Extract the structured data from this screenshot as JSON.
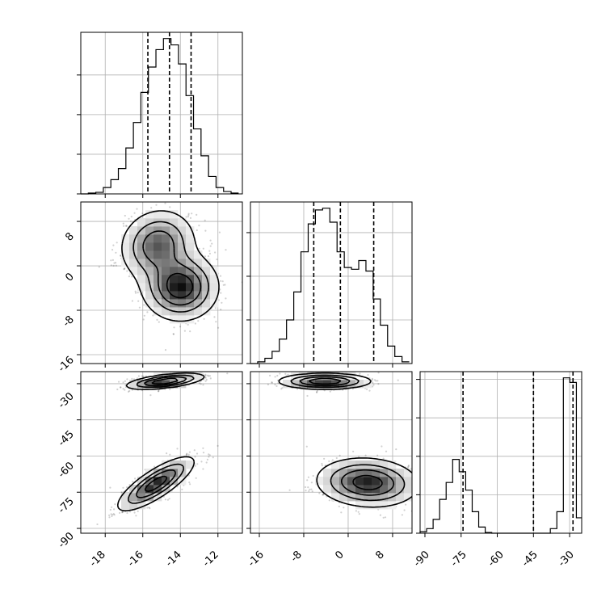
{
  "chart_data": [
    {
      "type": "step-histogram",
      "panel": "marginal-1",
      "xlim": [
        -19.3,
        -10.7
      ],
      "bins": [
        -19.3,
        -18.9,
        -18.5,
        -18.1,
        -17.7,
        -17.3,
        -16.9,
        -16.5,
        -16.1,
        -15.7,
        -15.3,
        -14.9,
        -14.5,
        -14.1,
        -13.7,
        -13.3,
        -12.9,
        -12.5,
        -12.1,
        -11.7,
        -11.3,
        -10.9
      ],
      "counts": [
        0,
        1,
        2,
        8,
        18,
        32,
        58,
        90,
        128,
        160,
        182,
        196,
        188,
        164,
        124,
        82,
        48,
        22,
        8,
        3,
        1
      ],
      "quantiles": [
        -15.73,
        -14.58,
        -13.43
      ],
      "yticks": [
        0,
        50,
        100,
        150
      ]
    },
    {
      "type": "step-histogram",
      "panel": "marginal-2",
      "xlim": [
        -17.6,
        11.5
      ],
      "bins": [
        -17.6,
        -16.3,
        -15.0,
        -13.7,
        -12.4,
        -11.1,
        -9.8,
        -8.5,
        -7.2,
        -5.9,
        -4.6,
        -3.3,
        -2.0,
        -0.7,
        0.6,
        1.9,
        3.2,
        4.5,
        5.8,
        7.1,
        8.4,
        9.7,
        11.0
      ],
      "counts": [
        0,
        2,
        6,
        14,
        28,
        50,
        82,
        128,
        160,
        176,
        178,
        162,
        128,
        110,
        108,
        118,
        106,
        74,
        44,
        20,
        8,
        2
      ],
      "quantiles": [
        -6.2,
        -1.4,
        4.6
      ],
      "yticks": [
        0,
        50,
        100,
        150
      ]
    },
    {
      "type": "step-histogram",
      "panel": "marginal-3",
      "xlim": [
        -92,
        -25
      ],
      "bins": [
        -92,
        -89.3,
        -86.6,
        -83.9,
        -81.2,
        -78.5,
        -75.8,
        -73.1,
        -70.4,
        -67.7,
        -65,
        -62.3,
        -59.6,
        -56.9,
        -54.2,
        -51.5,
        -48.8,
        -46.1,
        -43.4,
        -40.7,
        -38,
        -35.3,
        -32.6,
        -29.9,
        -27.2,
        -25
      ],
      "counts": [
        2,
        6,
        18,
        44,
        66,
        96,
        80,
        56,
        28,
        8,
        1,
        0,
        0,
        0,
        0,
        0,
        0,
        0,
        0,
        0,
        6,
        28,
        202,
        196,
        20
      ],
      "quantiles": [
        -74.2,
        -45.0,
        -28.6
      ],
      "yticks": [
        0,
        50,
        100,
        150,
        200
      ]
    },
    {
      "type": "heatmap",
      "panel": "joint-1-2",
      "xlim": [
        -19.3,
        -10.7
      ],
      "ylim": [
        -17.6,
        11.5
      ],
      "mixture": [
        {
          "mx": -14.0,
          "my": -3.8,
          "sx": 1.0,
          "sy": 3.0,
          "rho": 0.0,
          "w": 0.6
        },
        {
          "mx": -15.2,
          "my": 3.8,
          "sx": 1.0,
          "sy": 3.2,
          "rho": 0.1,
          "w": 0.45
        }
      ],
      "contour_levels": [
        0.12,
        0.32,
        0.55,
        0.8
      ]
    },
    {
      "type": "heatmap",
      "panel": "joint-1-3",
      "xlim": [
        -19.3,
        -10.7
      ],
      "ylim": [
        -92,
        -25
      ],
      "mixture": [
        {
          "mx": -14.8,
          "my": -29.0,
          "sx": 1.0,
          "sy": 1.6,
          "rho": 0.55,
          "w": 0.55
        },
        {
          "mx": -15.3,
          "my": -71.5,
          "sx": 1.0,
          "sy": 5.5,
          "rho": 0.8,
          "w": 0.5
        }
      ],
      "contour_levels": [
        0.12,
        0.32,
        0.55,
        0.8
      ]
    },
    {
      "type": "heatmap",
      "panel": "joint-2-3",
      "xlim": [
        -17.6,
        11.5
      ],
      "ylim": [
        -92,
        -25
      ],
      "mixture": [
        {
          "mx": -4.2,
          "my": -29.0,
          "sx": 4.0,
          "sy": 1.6,
          "rho": 0.0,
          "w": 0.55
        },
        {
          "mx": 3.5,
          "my": -71.0,
          "sx": 4.5,
          "sy": 5.0,
          "rho": -0.1,
          "w": 0.5
        }
      ],
      "contour_levels": [
        0.12,
        0.32,
        0.55,
        0.8
      ]
    }
  ],
  "axis_ticks": {
    "param1": [
      "-18",
      "-16",
      "-14",
      "-12"
    ],
    "param1_values": [
      -18,
      -16,
      -14,
      -12
    ],
    "param2": [
      "-16",
      "-8",
      "0",
      "8"
    ],
    "param2_values": [
      -16,
      -8,
      0,
      8
    ],
    "param3": [
      "-90",
      "-75",
      "-60",
      "-45",
      "-30"
    ],
    "param3_values": [
      -90,
      -75,
      -60,
      -45,
      -30
    ]
  },
  "colors": {
    "ink": "#000000",
    "grid": "#b0b0b0",
    "background": "#ffffff"
  }
}
